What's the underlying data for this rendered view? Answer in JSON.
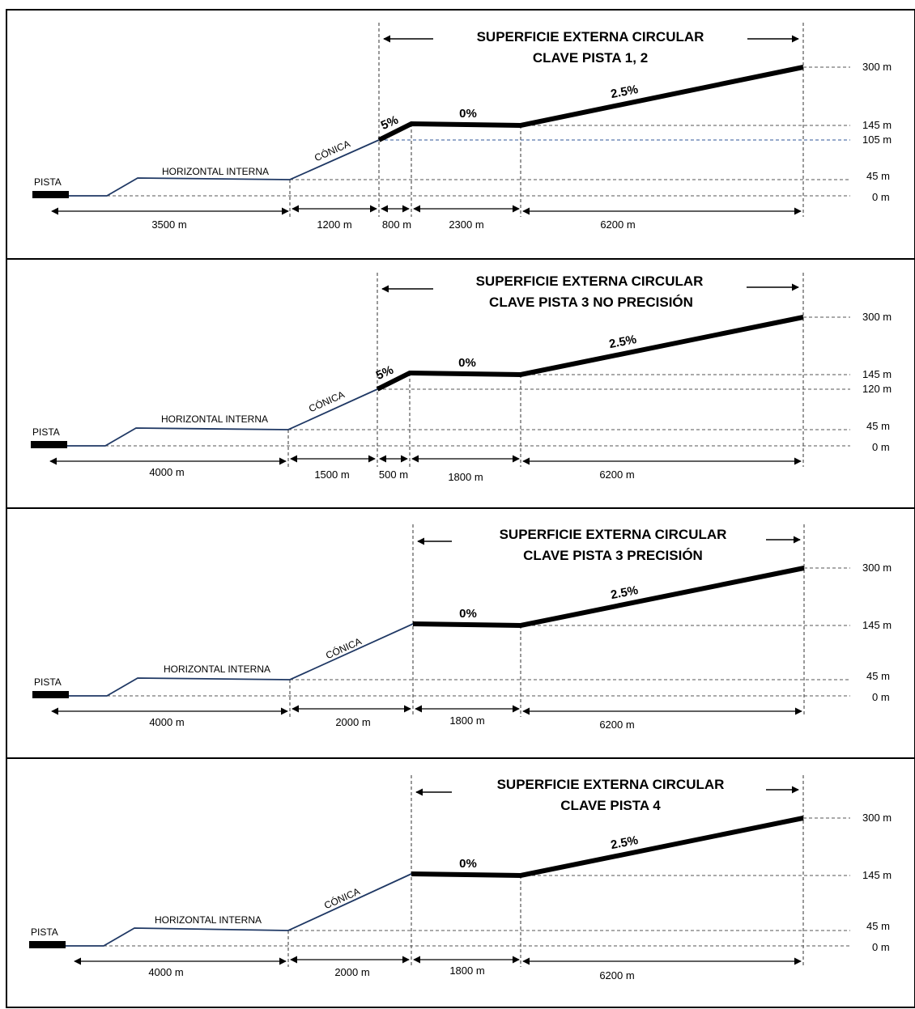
{
  "panels": [
    {
      "title_line1": "SUPERFICIE EXTERNA CIRCULAR",
      "title_line2": "CLAVE PISTA 1, 2",
      "runway_label": "PISTA",
      "horizontal_label": "HORIZONTAL INTERNA",
      "conical_label": "CÓNICA",
      "slope_5": "5%",
      "slope_0": "0%",
      "slope_25": "2.5%",
      "elevations": [
        "300 m",
        "145 m",
        "105 m",
        "45 m",
        "0 m"
      ],
      "distances": [
        "3500 m",
        "1200 m",
        "800 m",
        "2300 m",
        "6200 m"
      ]
    },
    {
      "title_line1": "SUPERFICIE EXTERNA CIRCULAR",
      "title_line2": "CLAVE PISTA 3 NO PRECISIÓN",
      "runway_label": "PISTA",
      "horizontal_label": "HORIZONTAL INTERNA",
      "conical_label": "CÓNICA",
      "slope_5": "5%",
      "slope_0": "0%",
      "slope_25": "2.5%",
      "elevations": [
        "300 m",
        "145 m",
        "120 m",
        "45 m",
        "0 m"
      ],
      "distances": [
        "4000 m",
        "1500 m",
        "500 m",
        "1800 m",
        "6200 m"
      ]
    },
    {
      "title_line1": "SUPERFICIE EXTERNA CIRCULAR",
      "title_line2": "CLAVE PISTA 3 PRECISIÓN",
      "runway_label": "PISTA",
      "horizontal_label": "HORIZONTAL INTERNA",
      "conical_label": "CÓNICA",
      "slope_0": "0%",
      "slope_25": "2.5%",
      "elevations": [
        "300 m",
        "145 m",
        "45 m",
        "0 m"
      ],
      "distances": [
        "4000 m",
        "2000 m",
        "1800 m",
        "6200 m"
      ]
    },
    {
      "title_line1": "SUPERFICIE EXTERNA CIRCULAR",
      "title_line2": "CLAVE PISTA 4",
      "runway_label": "PISTA",
      "horizontal_label": "HORIZONTAL INTERNA",
      "conical_label": "CÓNICA",
      "slope_0": "0%",
      "slope_25": "2.5%",
      "elevations": [
        "300 m",
        "145 m",
        "45 m",
        "0 m"
      ],
      "distances": [
        "4000 m",
        "2000 m",
        "1800 m",
        "6200 m"
      ]
    }
  ],
  "colors": {
    "surface_line": "#1f3864",
    "dashed_line": "#555555",
    "blue_dashed": "#2e5597",
    "thick_line": "#000000",
    "border": "#000000"
  }
}
